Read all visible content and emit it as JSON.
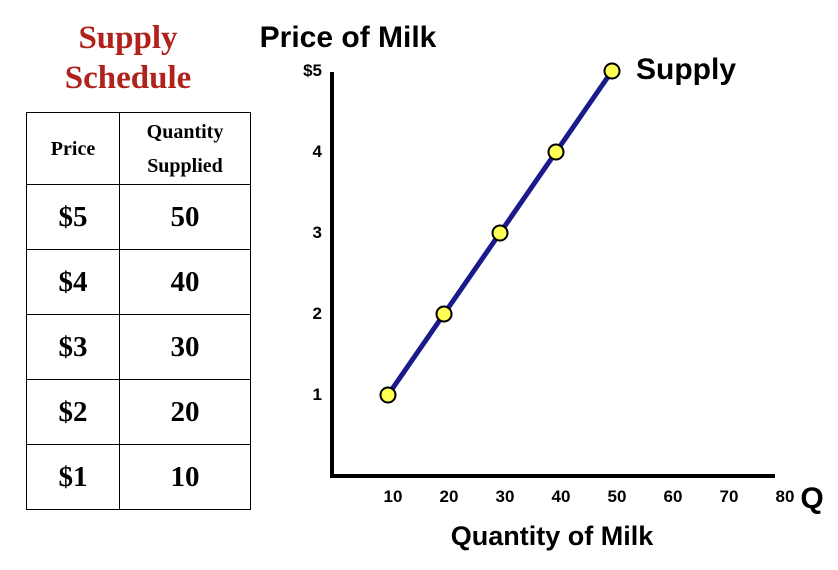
{
  "schedule": {
    "title_line1": "Supply",
    "title_line2": "Schedule",
    "header_price": "Price",
    "header_quantity_line1": "Quantity",
    "header_quantity_line2": "Supplied",
    "rows": [
      {
        "price": "$5",
        "quantity": "50"
      },
      {
        "price": "$4",
        "quantity": "40"
      },
      {
        "price": "$3",
        "quantity": "30"
      },
      {
        "price": "$2",
        "quantity": "20"
      },
      {
        "price": "$1",
        "quantity": "10"
      }
    ]
  },
  "colors": {
    "title_red": "#b0231d",
    "curve_navy": "#1a1a8c",
    "point_yellow": "#ffff55"
  },
  "chart_data": {
    "type": "line",
    "title": "Price of Milk",
    "xlabel": "Quantity of Milk",
    "x_axis_letter": "Q",
    "ylabel": "",
    "series": [
      {
        "name": "Supply",
        "x": [
          10,
          20,
          30,
          40,
          50
        ],
        "y": [
          1,
          2,
          3,
          4,
          5
        ]
      }
    ],
    "x_ticks": [
      10,
      20,
      30,
      40,
      50,
      60,
      70,
      80
    ],
    "x_tick_labels": [
      "10",
      "20",
      "30",
      "40",
      "50",
      "60",
      "70",
      "80"
    ],
    "y_ticks": [
      1,
      2,
      3,
      4,
      5
    ],
    "y_tick_labels": [
      "1",
      "2",
      "3",
      "4",
      "$5"
    ],
    "xlim": [
      0,
      80
    ],
    "ylim": [
      0,
      5
    ],
    "grid": false,
    "legend": "series label at end of curve"
  }
}
